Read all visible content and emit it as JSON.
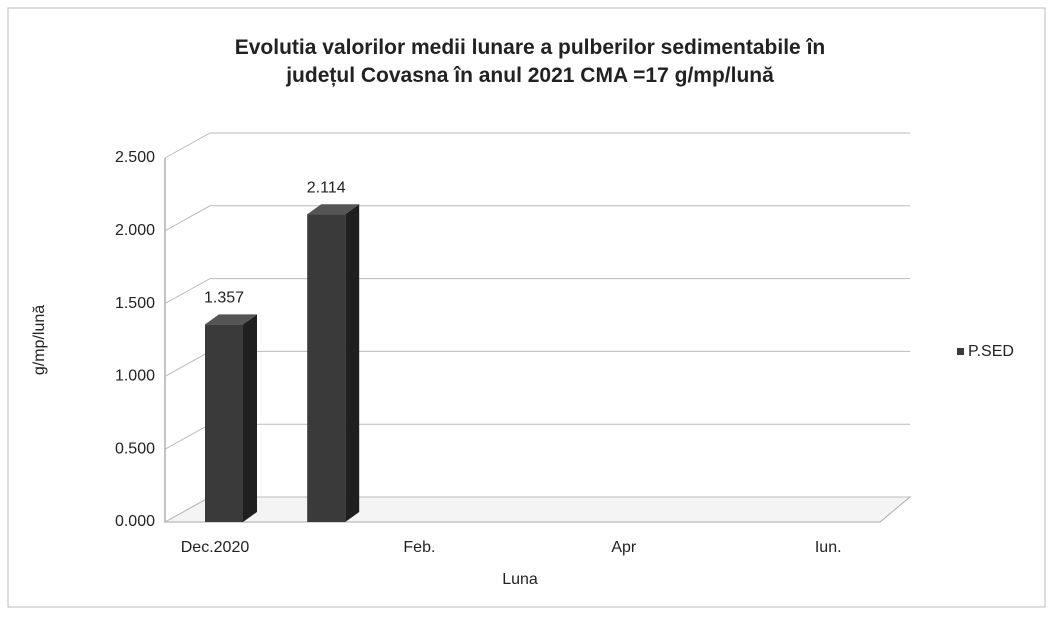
{
  "chart_data": {
    "type": "bar3d",
    "title": "Evolutia valorilor medii lunare a pulberilor sedimentabile în județul Covasna  în anul 2021   CMA =17 g/mp/lună",
    "x_label": "Luna",
    "y_label": "g/mp/lună",
    "categories": [
      "Dec.2020",
      null,
      "Feb.",
      null,
      "Apr",
      null,
      "Iun."
    ],
    "series": [
      {
        "name": "P.SED",
        "color": "#3a3a3a",
        "values": [
          1.357,
          2.114,
          null,
          null,
          null,
          null,
          null
        ]
      }
    ],
    "ylim": [
      0,
      2.5
    ],
    "yticks": [
      {
        "value": 0,
        "label": "0.000"
      },
      {
        "value": 0.5,
        "label": "0.500"
      },
      {
        "value": 1,
        "label": "1.000"
      },
      {
        "value": 1.5,
        "label": "1.500"
      },
      {
        "value": 2,
        "label": "2.000"
      },
      {
        "value": 2.5,
        "label": "2.500"
      }
    ],
    "grid": true,
    "legend": "right"
  }
}
